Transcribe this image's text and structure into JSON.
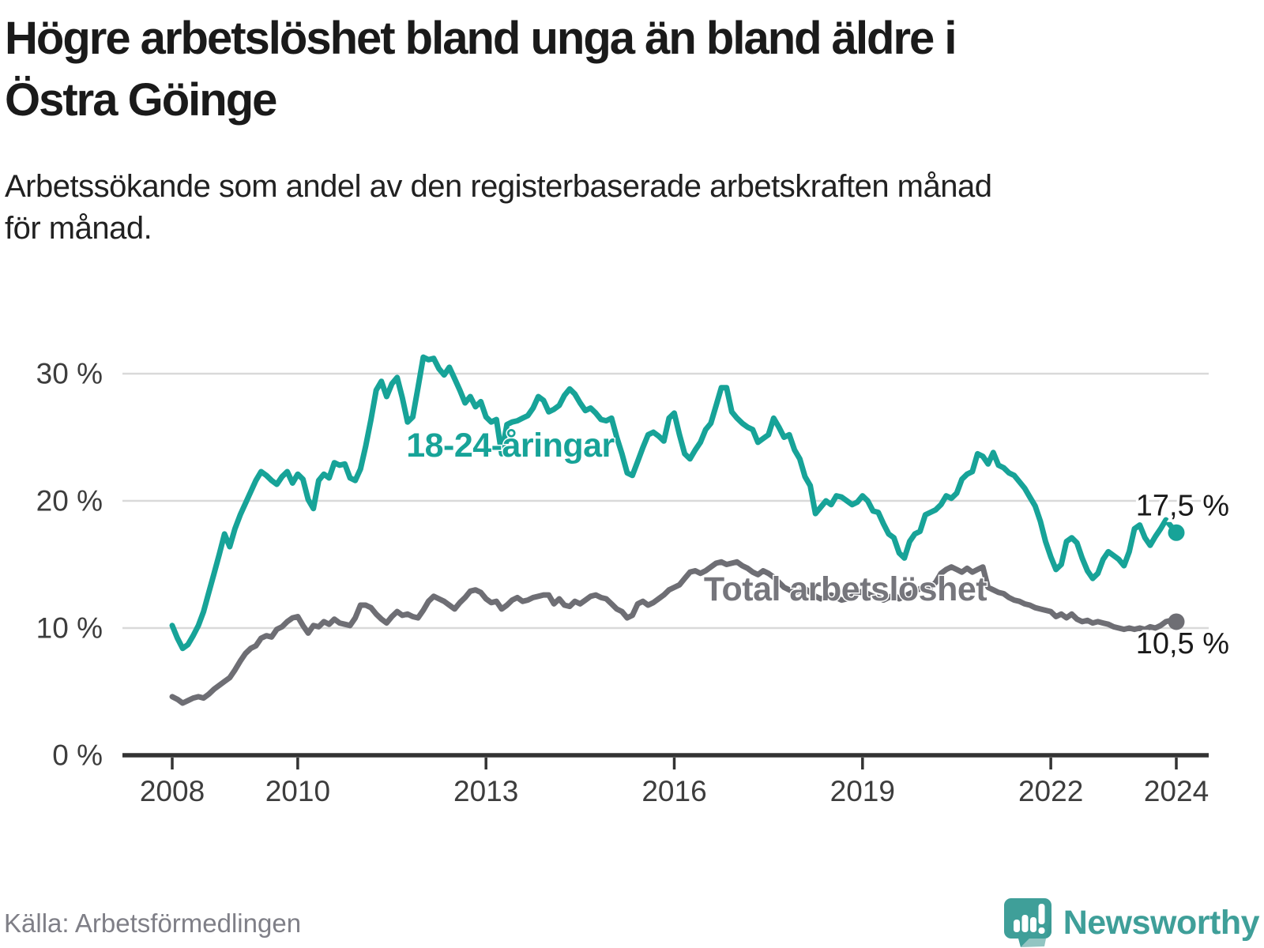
{
  "header": {
    "title": "Högre arbetslöshet bland unga än bland äldre i\nÖstra Göinge",
    "subtitle": "Arbetssökande som andel av den registerbaserade arbetskraften månad\nför månad."
  },
  "footer": {
    "source": "Källa: Arbetsförmedlingen",
    "brand": "Newsworthy"
  },
  "colors": {
    "youth_line": "#17a398",
    "total_line": "#6e6e74",
    "total_label": "#76767c",
    "grid": "#d9d9d9",
    "axis": "#333333",
    "tick_text": "#3d3d3d",
    "end_label_text": "#1a1a1a",
    "brand_teal": "#3f9f99"
  },
  "chart_data": {
    "type": "line",
    "unit": "%",
    "x_start": "2008-01",
    "x_end": "2024-01",
    "grid": "horizontal",
    "ylim": [
      0,
      33.5
    ],
    "y_ticks": [
      {
        "value": 0,
        "label": "0 %"
      },
      {
        "value": 10,
        "label": "10 %"
      },
      {
        "value": 20,
        "label": "20 %"
      },
      {
        "value": 30,
        "label": "30 %"
      }
    ],
    "x_ticks": [
      {
        "year": 2008,
        "label": "2008"
      },
      {
        "year": 2010,
        "label": "2010"
      },
      {
        "year": 2013,
        "label": "2013"
      },
      {
        "year": 2016,
        "label": "2016"
      },
      {
        "year": 2019,
        "label": "2019"
      },
      {
        "year": 2022,
        "label": "2022"
      },
      {
        "year": 2024,
        "label": "2024"
      }
    ],
    "series": [
      {
        "key": "total",
        "name": "Total arbetslöshet",
        "color": "#6e6e74",
        "label_color": "#76767c",
        "end_label": "10,5 %",
        "end_value": 10.5,
        "values": [
          4.6,
          4.4,
          4.1,
          4.3,
          4.5,
          4.6,
          4.5,
          4.8,
          5.2,
          5.5,
          5.8,
          6.1,
          6.7,
          7.4,
          8.0,
          8.4,
          8.6,
          9.2,
          9.4,
          9.3,
          9.9,
          10.1,
          10.5,
          10.8,
          10.9,
          10.2,
          9.6,
          10.2,
          10.1,
          10.5,
          10.3,
          10.7,
          10.4,
          10.3,
          10.2,
          10.8,
          11.8,
          11.8,
          11.6,
          11.1,
          10.7,
          10.4,
          10.9,
          11.3,
          11.0,
          11.1,
          10.9,
          10.8,
          11.4,
          12.1,
          12.5,
          12.3,
          12.1,
          11.8,
          11.5,
          12.0,
          12.4,
          12.9,
          13.0,
          12.8,
          12.3,
          12.0,
          12.1,
          11.5,
          11.8,
          12.2,
          12.4,
          12.1,
          12.2,
          12.4,
          12.5,
          12.6,
          12.6,
          11.9,
          12.3,
          11.8,
          11.7,
          12.1,
          11.9,
          12.2,
          12.5,
          12.6,
          12.4,
          12.3,
          11.9,
          11.5,
          11.3,
          10.8,
          11.0,
          11.9,
          12.1,
          11.8,
          12.0,
          12.3,
          12.6,
          13.0,
          13.2,
          13.4,
          13.9,
          14.4,
          14.5,
          14.3,
          14.5,
          14.8,
          15.1,
          15.2,
          15.0,
          15.1,
          15.2,
          14.9,
          14.7,
          14.4,
          14.2,
          14.5,
          14.3,
          14.0,
          13.6,
          13.2,
          13.0,
          12.8,
          12.9,
          13.1,
          12.8,
          12.5,
          12.3,
          12.4,
          12.6,
          12.4,
          12.2,
          12.3,
          12.5,
          12.7,
          12.9,
          12.7,
          12.5,
          12.4,
          12.2,
          12.4,
          12.6,
          12.3,
          12.5,
          12.7,
          12.9,
          13.1,
          13.3,
          13.2,
          13.6,
          14.3,
          14.6,
          14.8,
          14.6,
          14.4,
          14.7,
          14.4,
          14.6,
          14.8,
          13.2,
          13.0,
          12.8,
          12.7,
          12.4,
          12.2,
          12.1,
          11.9,
          11.8,
          11.6,
          11.5,
          11.4,
          11.3,
          10.9,
          11.1,
          10.8,
          11.1,
          10.7,
          10.5,
          10.6,
          10.4,
          10.5,
          10.4,
          10.3,
          10.1,
          10.0,
          9.9,
          10.0,
          9.9,
          10.0,
          9.9,
          10.1,
          10.0,
          10.2,
          10.5,
          10.6,
          10.5
        ]
      },
      {
        "key": "youth",
        "name": "18-24-åringar",
        "color": "#17a398",
        "label_color": "#17a398",
        "end_label": "17,5 %",
        "end_value": 17.5,
        "values": [
          10.2,
          9.2,
          8.4,
          8.7,
          9.4,
          10.2,
          11.3,
          12.8,
          14.3,
          15.8,
          17.4,
          16.4,
          17.8,
          18.9,
          19.8,
          20.7,
          21.6,
          22.3,
          22.0,
          21.6,
          21.3,
          21.9,
          22.3,
          21.4,
          22.1,
          21.7,
          20.1,
          19.4,
          21.6,
          22.1,
          21.8,
          23.0,
          22.8,
          22.9,
          21.8,
          21.6,
          22.5,
          24.3,
          26.4,
          28.7,
          29.4,
          28.2,
          29.2,
          29.7,
          28.1,
          26.2,
          26.6,
          28.9,
          31.3,
          31.1,
          31.2,
          30.4,
          29.9,
          30.5,
          29.6,
          28.7,
          27.7,
          28.2,
          27.4,
          27.8,
          26.6,
          26.2,
          26.4,
          23.7,
          26.0,
          26.2,
          26.3,
          26.5,
          26.7,
          27.3,
          28.2,
          27.9,
          27.0,
          27.2,
          27.5,
          28.3,
          28.8,
          28.4,
          27.7,
          27.1,
          27.3,
          26.9,
          26.4,
          26.3,
          26.5,
          25.0,
          23.7,
          22.2,
          22.0,
          23.1,
          24.2,
          25.2,
          25.4,
          25.1,
          24.7,
          26.5,
          26.9,
          25.2,
          23.7,
          23.3,
          24.0,
          24.6,
          25.6,
          26.1,
          27.5,
          28.9,
          28.9,
          27.0,
          26.5,
          26.1,
          25.8,
          25.6,
          24.6,
          24.9,
          25.2,
          26.5,
          25.8,
          25.0,
          25.2,
          24.0,
          23.3,
          21.9,
          21.2,
          19.0,
          19.5,
          20.0,
          19.7,
          20.4,
          20.3,
          20.0,
          19.7,
          19.9,
          20.4,
          20.0,
          19.2,
          19.1,
          18.2,
          17.4,
          17.1,
          15.9,
          15.5,
          16.8,
          17.4,
          17.6,
          18.9,
          19.1,
          19.3,
          19.7,
          20.4,
          20.2,
          20.6,
          21.7,
          22.1,
          22.3,
          23.7,
          23.5,
          22.9,
          23.8,
          22.8,
          22.6,
          22.2,
          22.0,
          21.5,
          21.0,
          20.3,
          19.6,
          18.4,
          16.8,
          15.6,
          14.6,
          15.0,
          16.8,
          17.1,
          16.7,
          15.5,
          14.5,
          13.9,
          14.3,
          15.4,
          16.0,
          15.7,
          15.4,
          14.9,
          16.0,
          17.8,
          18.1,
          17.1,
          16.5,
          17.2,
          17.8,
          18.5,
          18.0,
          17.5
        ]
      }
    ]
  }
}
